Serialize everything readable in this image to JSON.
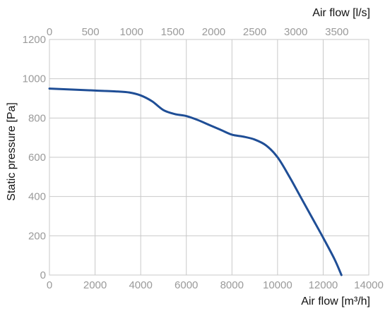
{
  "chart_data": {
    "type": "line",
    "xlabel": "Air flow [m³/h]",
    "x2label": "Air flow [l/s]",
    "ylabel": "Static pressure [Pa]",
    "xlim": [
      0,
      14000
    ],
    "x2lim": [
      0,
      3888.9
    ],
    "ylim": [
      0,
      1200
    ],
    "xticks": [
      0,
      2000,
      4000,
      6000,
      8000,
      10000,
      12000,
      14000
    ],
    "x2ticks": [
      0,
      500,
      1000,
      1500,
      2000,
      2500,
      3000,
      3500
    ],
    "yticks": [
      0,
      200,
      400,
      600,
      800,
      1000,
      1200
    ],
    "grid": true,
    "series": [
      {
        "color": "#1f4e96",
        "x": [
          0,
          1000,
          2000,
          3000,
          3500,
          4000,
          4500,
          5000,
          5500,
          6000,
          6500,
          7000,
          7500,
          8000,
          8500,
          9000,
          9500,
          10000,
          10500,
          11000,
          11500,
          12000,
          12500,
          12800
        ],
        "y": [
          950,
          945,
          940,
          935,
          930,
          915,
          885,
          840,
          820,
          810,
          790,
          765,
          740,
          715,
          705,
          690,
          660,
          600,
          505,
          400,
          295,
          190,
          80,
          0
        ]
      }
    ]
  }
}
